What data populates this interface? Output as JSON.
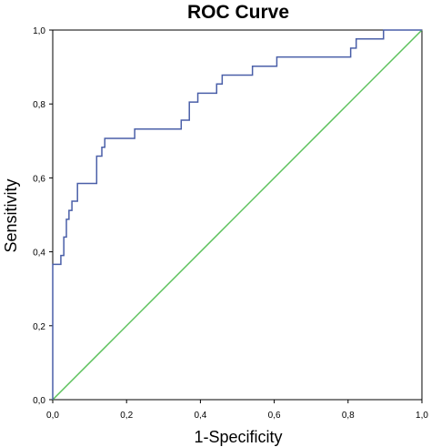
{
  "chart_data": {
    "type": "line",
    "title": "ROC Curve",
    "xlabel": "1-Specificity",
    "ylabel": "Sensitivity",
    "xlim": [
      0,
      1
    ],
    "ylim": [
      0,
      1
    ],
    "x_ticks": [
      "0,0",
      "0,2",
      "0,4",
      "0,6",
      "0,8",
      "1,0"
    ],
    "y_ticks": [
      "0,0",
      "0,2",
      "0,4",
      "0,6",
      "0,8",
      "1,0"
    ],
    "grid": false,
    "series": [
      {
        "color": "#4a5fa8",
        "style": "step",
        "points": [
          [
            0.0,
            0.0
          ],
          [
            0.0,
            0.366
          ],
          [
            0.022,
            0.366
          ],
          [
            0.022,
            0.39
          ],
          [
            0.03,
            0.39
          ],
          [
            0.03,
            0.44
          ],
          [
            0.037,
            0.44
          ],
          [
            0.037,
            0.488
          ],
          [
            0.044,
            0.488
          ],
          [
            0.044,
            0.512
          ],
          [
            0.052,
            0.512
          ],
          [
            0.052,
            0.537
          ],
          [
            0.067,
            0.537
          ],
          [
            0.067,
            0.585
          ],
          [
            0.119,
            0.585
          ],
          [
            0.119,
            0.659
          ],
          [
            0.133,
            0.659
          ],
          [
            0.133,
            0.683
          ],
          [
            0.141,
            0.683
          ],
          [
            0.141,
            0.707
          ],
          [
            0.222,
            0.707
          ],
          [
            0.222,
            0.732
          ],
          [
            0.348,
            0.732
          ],
          [
            0.348,
            0.756
          ],
          [
            0.37,
            0.756
          ],
          [
            0.37,
            0.805
          ],
          [
            0.393,
            0.805
          ],
          [
            0.393,
            0.829
          ],
          [
            0.444,
            0.829
          ],
          [
            0.444,
            0.854
          ],
          [
            0.459,
            0.854
          ],
          [
            0.459,
            0.878
          ],
          [
            0.541,
            0.878
          ],
          [
            0.541,
            0.902
          ],
          [
            0.607,
            0.902
          ],
          [
            0.607,
            0.927
          ],
          [
            0.807,
            0.927
          ],
          [
            0.807,
            0.951
          ],
          [
            0.822,
            0.951
          ],
          [
            0.822,
            0.976
          ],
          [
            0.896,
            0.976
          ],
          [
            0.896,
            1.0
          ],
          [
            1.0,
            1.0
          ]
        ]
      },
      {
        "color": "#5cc15c",
        "style": "line",
        "points": [
          [
            0,
            0
          ],
          [
            1,
            1
          ]
        ]
      }
    ]
  }
}
